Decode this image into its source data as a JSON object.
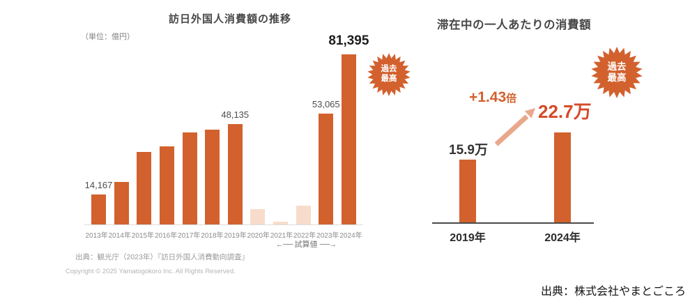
{
  "colors": {
    "bar_orange": "#D2612E",
    "bar_estimate_pink": "#F8DCCB",
    "badge_orange": "#D2612E",
    "accent_text": "#D2612E",
    "highlight_value": "#D44A28",
    "arrow_salmon": "#E9A88C"
  },
  "left_chart": {
    "title": "訪日外国人消費額の推移",
    "unit_label": "（単位：億円）",
    "record_badge": {
      "line1": "過去",
      "line2": "最高"
    },
    "trial_note": {
      "arrow_left": "←──",
      "label": "試算値",
      "arrow_right": "──→"
    },
    "source": "出典：観光庁（2023年）『訪日外国人消費動向調査』",
    "copyright": "Copyright © 2025 Yamatogokoro Inc. All Rights Reserved."
  },
  "right_chart": {
    "title": "滞在中の一人あたりの消費額",
    "record_badge": {
      "line1": "過去",
      "line2": "最高"
    },
    "growth_value": "+1.43",
    "growth_suffix": "倍",
    "label_2019": "15.9万",
    "label_2024": "22.7万"
  },
  "footer": {
    "source": "出典：株式会社やまとごころ"
  },
  "chart_data": [
    {
      "type": "bar",
      "title": "訪日外国人消費額の推移",
      "unit": "億円",
      "categories": [
        "2013年",
        "2014年",
        "2015年",
        "2016年",
        "2017年",
        "2018年",
        "2019年",
        "2020年",
        "2021年",
        "2022年",
        "2023年",
        "2024年"
      ],
      "values": [
        14167,
        20278,
        34771,
        37476,
        44162,
        45189,
        48135,
        7446,
        1208,
        8987,
        53065,
        81395
      ],
      "data_labels": [
        "14,167",
        null,
        null,
        null,
        null,
        null,
        "48,135",
        null,
        null,
        null,
        "53,065",
        "81,395"
      ],
      "estimated_mask": [
        false,
        false,
        false,
        false,
        false,
        false,
        false,
        true,
        true,
        true,
        false,
        false
      ],
      "estimate_note": "試算値",
      "record_annotation": "過去最高",
      "ylim": [
        0,
        85000
      ],
      "grid": false,
      "legend": false
    },
    {
      "type": "bar",
      "title": "滞在中の一人あたりの消費額",
      "unit": "万円",
      "categories": [
        "2019年",
        "2024年"
      ],
      "values": [
        15.9,
        22.7
      ],
      "data_labels": [
        "15.9万",
        "22.7万"
      ],
      "growth_annotation": "+1.43倍",
      "record_annotation": "過去最高",
      "ylim": [
        0,
        25
      ],
      "grid": false,
      "legend": false
    }
  ]
}
